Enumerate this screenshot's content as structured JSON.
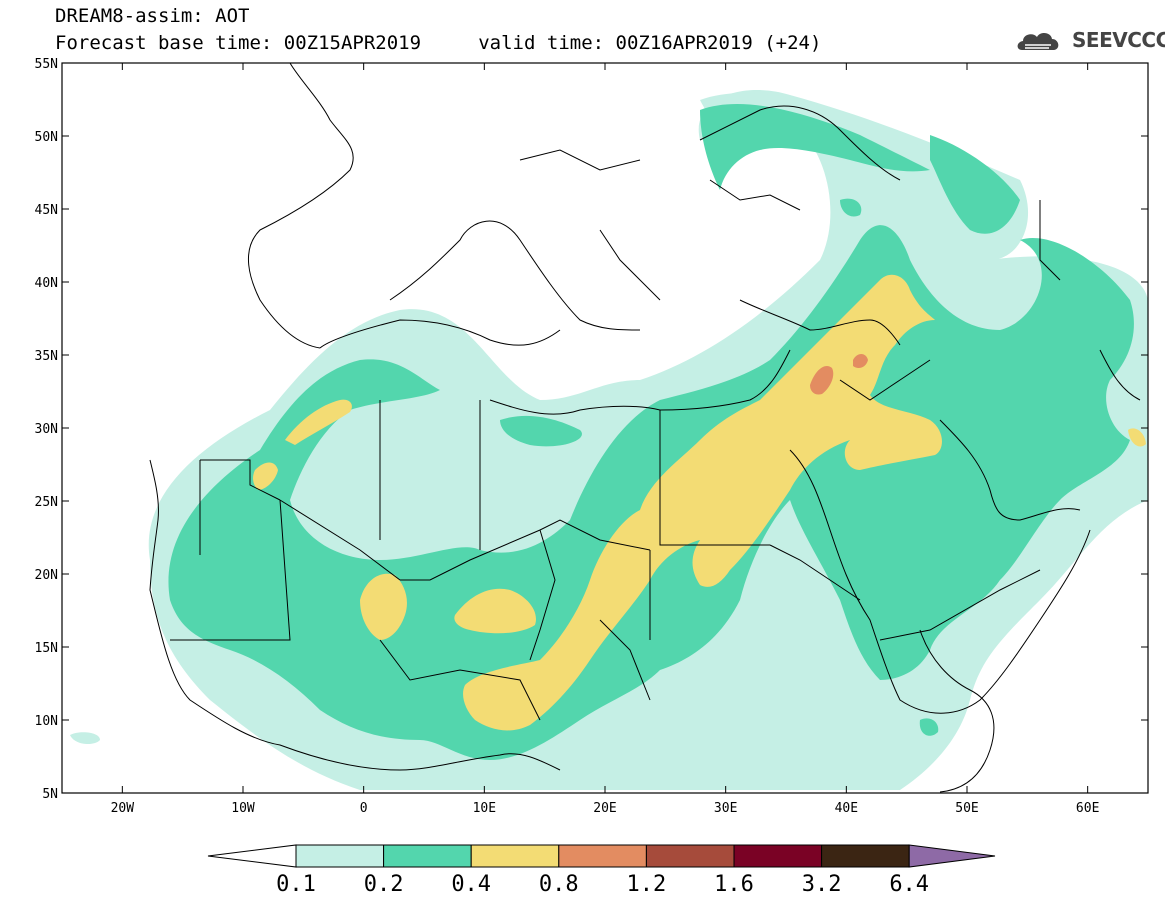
{
  "header": {
    "title_line1": "DREAM8-assim: AOT",
    "title_line2": "Forecast base time: 00Z15APR2019     valid time: 00Z16APR2019 (+24)",
    "logo_text": "SEEVCCC",
    "logo_icon": "cloud-logo-icon"
  },
  "map": {
    "lat_ticks": [
      "55N",
      "50N",
      "45N",
      "40N",
      "35N",
      "30N",
      "25N",
      "20N",
      "15N",
      "10N",
      "5N"
    ],
    "lon_ticks": [
      "20W",
      "10W",
      "0",
      "10E",
      "20E",
      "30E",
      "40E",
      "50E",
      "60E"
    ],
    "lon_range": [
      -25,
      65
    ],
    "lat_range": [
      5,
      55
    ]
  },
  "colorbar": {
    "labels": [
      "0.1",
      "0.2",
      "0.4",
      "0.8",
      "1.2",
      "1.6",
      "3.2",
      "6.4"
    ],
    "colors": [
      "#ffffff",
      "#c5efe5",
      "#53d6ad",
      "#f3dc74",
      "#e38c61",
      "#a64b3b",
      "#7a0225",
      "#3b2513",
      "#8e6aa6"
    ]
  },
  "colors": {
    "level_0_1": "#c5efe5",
    "level_0_2": "#53d6ad",
    "level_0_4": "#f3dc74",
    "level_0_8": "#e38c61"
  }
}
